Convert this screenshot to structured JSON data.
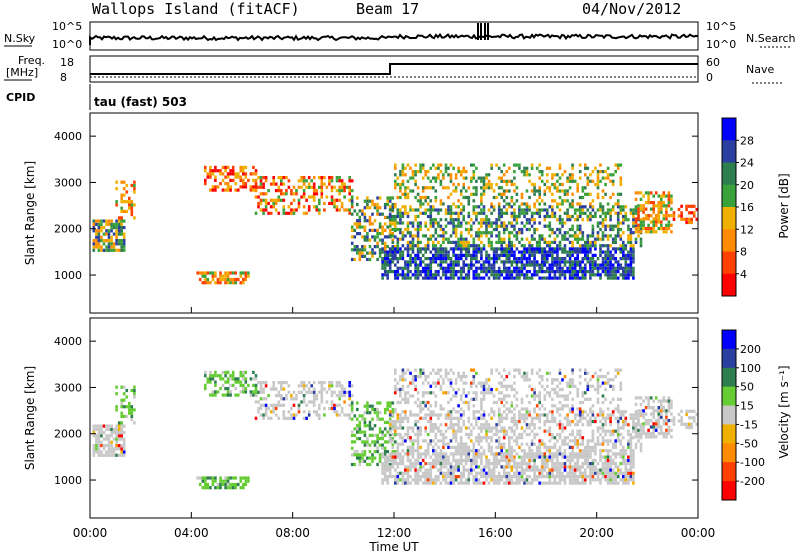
{
  "header": {
    "station": "Wallops Island (fitACF)",
    "beam": "Beam 17",
    "date": "04/Nov/2012"
  },
  "status_panels": {
    "nsky_label": "N.Sky",
    "nsky_ticks": [
      "10^5",
      "10^0"
    ],
    "nsearch_label": "N.Search",
    "nsearch_ticks": [
      "10^5",
      "10^0"
    ],
    "freq_label": "Freq.",
    "freq_unit": "[MHz]",
    "freq_ticks": [
      "18",
      "8"
    ],
    "nave_label": "Nave",
    "nave_ticks": [
      "60",
      "0"
    ],
    "cpid_label": "CPID",
    "cpid_value": "tau (fast) 503"
  },
  "colors": {
    "power_scale": [
      "#0000ff",
      "#2a3f9f",
      "#2e7d4f",
      "#3aa23a",
      "#f0b000",
      "#ff8c00",
      "#ff4000",
      "#ff0000"
    ],
    "velocity_scale": [
      "#0000ff",
      "#2a3f9f",
      "#2e7d4f",
      "#66cc33",
      "#c8c8c8",
      "#f0b000",
      "#ff8c00",
      "#ff4000",
      "#ff0000"
    ],
    "ground_scatter": "#c8c8c8"
  },
  "chart_data": [
    {
      "type": "heatmap",
      "panel": "power",
      "ylabel": "Slant Range [km]",
      "yticks": [
        "4000",
        "3000",
        "2000",
        "1000"
      ],
      "xticks": [
        "00:00",
        "04:00",
        "08:00",
        "12:00",
        "16:00",
        "20:00",
        "00:00"
      ],
      "colorbar_label": "Power [dB]",
      "colorbar_ticks": [
        "28",
        "24",
        "20",
        "16",
        "12",
        "8",
        "4"
      ],
      "xlim": [
        0,
        24
      ],
      "ylim": [
        180,
        4500
      ]
    },
    {
      "type": "heatmap",
      "panel": "velocity",
      "ylabel": "Slant Range [km]",
      "yticks": [
        "4000",
        "3000",
        "2000",
        "1000"
      ],
      "xticks": [
        "00:00",
        "04:00",
        "08:00",
        "12:00",
        "16:00",
        "20:00",
        "00:00"
      ],
      "xlabel": "Time UT",
      "colorbar_label": "Velocity [m s⁻¹]",
      "colorbar_ticks": [
        "200",
        "100",
        "50",
        "15",
        "-15",
        "-50",
        "-100",
        "-200"
      ],
      "xlim": [
        0,
        24
      ],
      "ylim": [
        180,
        4500
      ]
    }
  ]
}
